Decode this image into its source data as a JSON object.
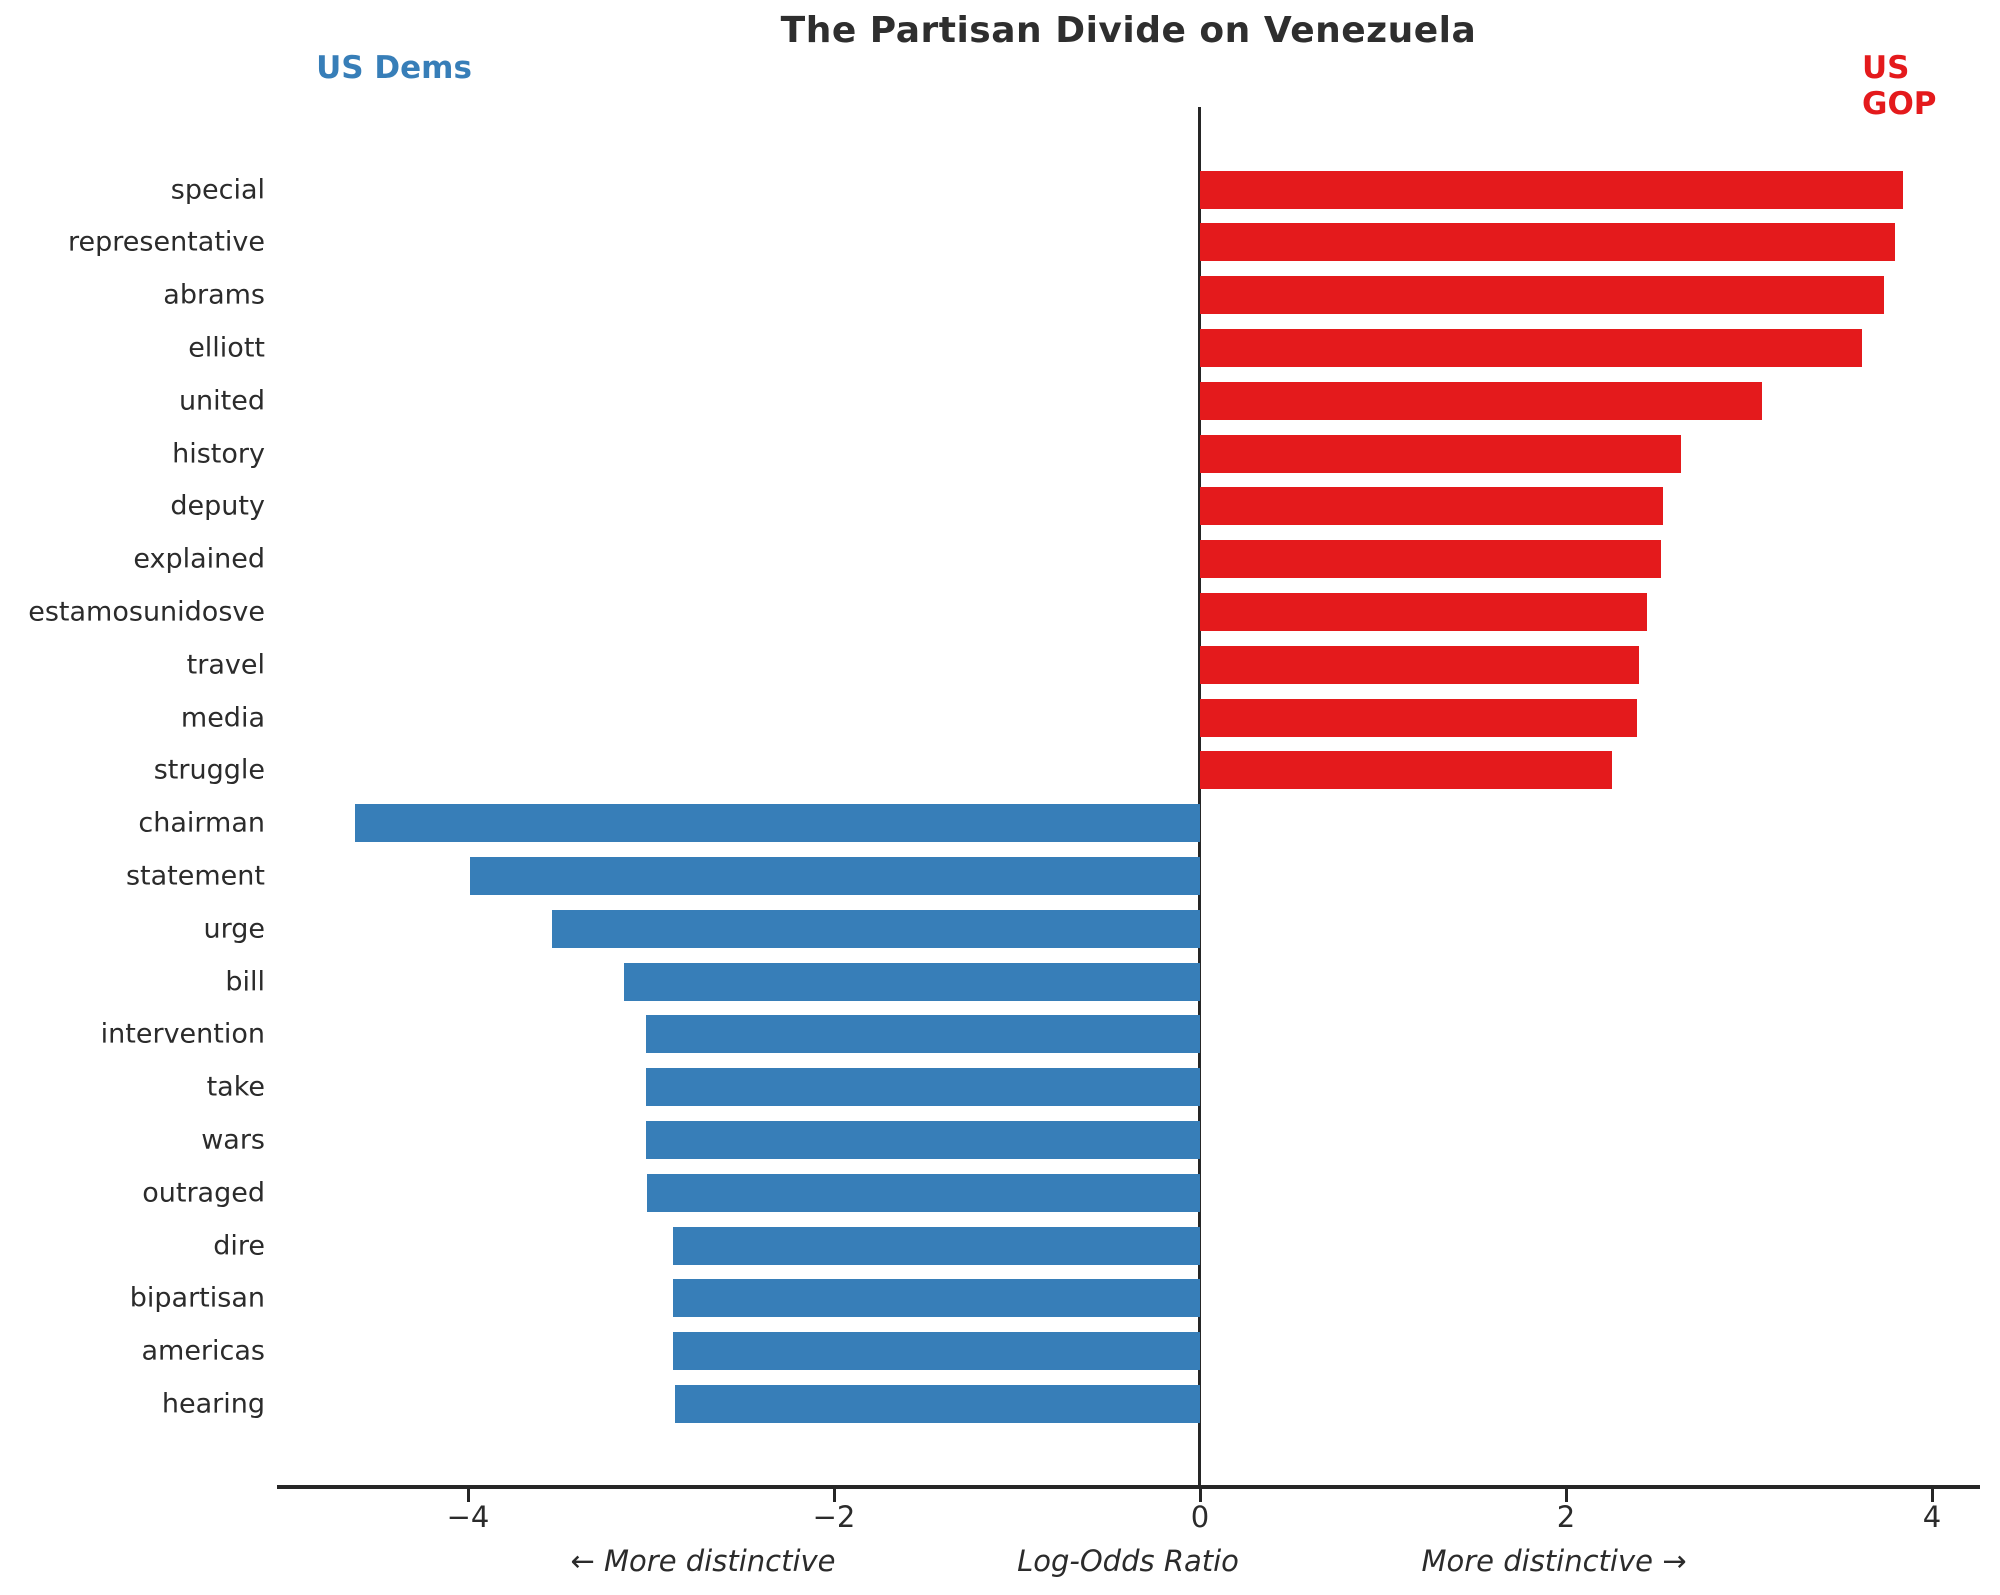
{
  "title": "The Partisan Divide on Venezuela",
  "left_group_label": "US Dems",
  "right_group_label": "US GOP",
  "colors": {
    "dems": "#377eb8",
    "gop": "#e41a1c",
    "axis": "#262626",
    "text": "#2b2b2b"
  },
  "annotations": {
    "left": "← More distinctive",
    "center": "Log-Odds Ratio",
    "right": "More distinctive →"
  },
  "chart_data": {
    "type": "bar",
    "orientation": "horizontal",
    "title": "The Partisan Divide on Venezuela",
    "xlabel": "Log-Odds Ratio",
    "xlim": [
      -5.04,
      4.26
    ],
    "x_ticks": [
      -4,
      -2,
      0,
      2,
      4
    ],
    "x_tick_labels": [
      "−4",
      "−2",
      "0",
      "2",
      "4"
    ],
    "legend": [
      {
        "label": "US Dems",
        "color": "#377eb8",
        "side": "left"
      },
      {
        "label": "US GOP",
        "color": "#e41a1c",
        "side": "right"
      }
    ],
    "grid": false,
    "series": [
      {
        "word": "special",
        "value": 3.84,
        "party": "gop"
      },
      {
        "word": "representative",
        "value": 3.8,
        "party": "gop"
      },
      {
        "word": "abrams",
        "value": 3.74,
        "party": "gop"
      },
      {
        "word": "elliott",
        "value": 3.62,
        "party": "gop"
      },
      {
        "word": "united",
        "value": 3.07,
        "party": "gop"
      },
      {
        "word": "history",
        "value": 2.63,
        "party": "gop"
      },
      {
        "word": "deputy",
        "value": 2.53,
        "party": "gop"
      },
      {
        "word": "explained",
        "value": 2.52,
        "party": "gop"
      },
      {
        "word": "estamosunidosve",
        "value": 2.44,
        "party": "gop"
      },
      {
        "word": "travel",
        "value": 2.4,
        "party": "gop"
      },
      {
        "word": "media",
        "value": 2.39,
        "party": "gop"
      },
      {
        "word": "struggle",
        "value": 2.25,
        "party": "gop"
      },
      {
        "word": "chairman",
        "value": -4.62,
        "party": "dems"
      },
      {
        "word": "statement",
        "value": -3.99,
        "party": "dems"
      },
      {
        "word": "urge",
        "value": -3.54,
        "party": "dems"
      },
      {
        "word": "bill",
        "value": -3.15,
        "party": "dems"
      },
      {
        "word": "intervention",
        "value": -3.03,
        "party": "dems"
      },
      {
        "word": "take",
        "value": -3.03,
        "party": "dems"
      },
      {
        "word": "wars",
        "value": -3.03,
        "party": "dems"
      },
      {
        "word": "outraged",
        "value": -3.02,
        "party": "dems"
      },
      {
        "word": "dire",
        "value": -2.88,
        "party": "dems"
      },
      {
        "word": "bipartisan",
        "value": -2.88,
        "party": "dems"
      },
      {
        "word": "americas",
        "value": -2.88,
        "party": "dems"
      },
      {
        "word": "hearing",
        "value": -2.87,
        "party": "dems"
      }
    ]
  }
}
